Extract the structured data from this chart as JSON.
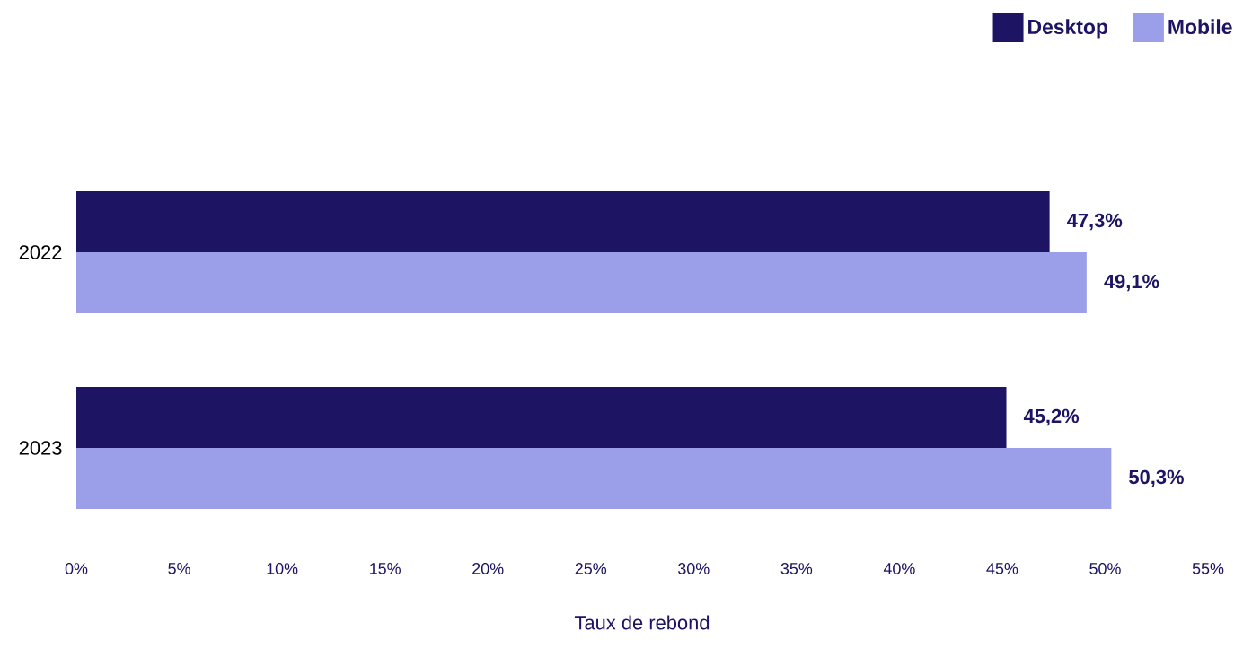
{
  "chart_data": {
    "type": "bar",
    "orientation": "horizontal",
    "xlabel": "Taux de rebond",
    "categories": [
      "2022",
      "2023"
    ],
    "series": [
      {
        "name": "Desktop",
        "color": "#1e1464",
        "values": [
          47.3,
          45.2
        ],
        "value_labels": [
          "47,3%",
          "45,2%"
        ]
      },
      {
        "name": "Mobile",
        "color": "#9b9fea",
        "values": [
          49.1,
          50.3
        ],
        "value_labels": [
          "49,1%",
          "50,3%"
        ]
      }
    ],
    "xlim": [
      0,
      55
    ],
    "xticks": [
      {
        "value": 0,
        "label": "0%"
      },
      {
        "value": 5,
        "label": "5%"
      },
      {
        "value": 10,
        "label": "10%"
      },
      {
        "value": 15,
        "label": "15%"
      },
      {
        "value": 20,
        "label": "20%"
      },
      {
        "value": 25,
        "label": "25%"
      },
      {
        "value": 30,
        "label": "30%"
      },
      {
        "value": 35,
        "label": "35%"
      },
      {
        "value": 40,
        "label": "40%"
      },
      {
        "value": 45,
        "label": "45%"
      },
      {
        "value": 50,
        "label": "50%"
      },
      {
        "value": 55,
        "label": "55%"
      }
    ],
    "grid": false,
    "legend": "top right"
  }
}
